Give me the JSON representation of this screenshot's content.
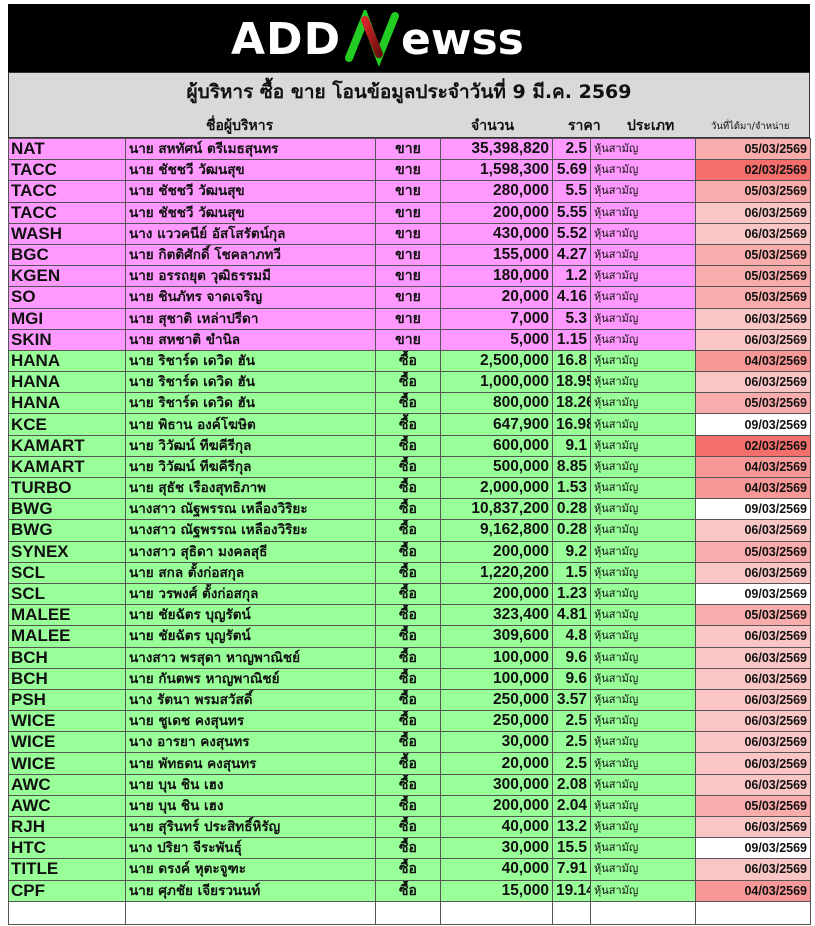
{
  "logo": {
    "text": "ADDNewss",
    "colors": {
      "white": "#ffffff",
      "green": "#22cc22",
      "red": "#cc2222"
    }
  },
  "title": "ผู้บริหาร ซื้อ ขาย โอนข้อมูลประจำวันที่ 9 มี.ค. 2569",
  "headers": {
    "name": "ชื่อผู้บริหาร",
    "volume": "จำนวน",
    "price": "ราคา",
    "type": "ประเภท",
    "date": "วันที่ได้มา/จำหน่าย"
  },
  "colors": {
    "sell_row": "#ff99ff",
    "buy_row": "#99ff99",
    "header": "#d9d9d9",
    "date_scale": {
      "02/03/2569": "#f46e6b",
      "04/03/2569": "#f79896",
      "05/03/2569": "#f8acab",
      "06/03/2569": "#f9c5c5",
      "09/03/2569": "#ffffff"
    }
  },
  "rows": [
    {
      "symbol": "NAT",
      "name": "นาย สหทัศน์ ตรีเมธสุนทร",
      "action": "ขาย",
      "volume": "35,398,820",
      "price": "2.5",
      "type": "หุ้นสามัญ",
      "date": "05/03/2569"
    },
    {
      "symbol": "TACC",
      "name": "นาย ชัชชวี วัฒนสุข",
      "action": "ขาย",
      "volume": "1,598,300",
      "price": "5.69",
      "type": "หุ้นสามัญ",
      "date": "02/03/2569"
    },
    {
      "symbol": "TACC",
      "name": "นาย ชัชชวี วัฒนสุข",
      "action": "ขาย",
      "volume": "280,000",
      "price": "5.5",
      "type": "หุ้นสามัญ",
      "date": "05/03/2569"
    },
    {
      "symbol": "TACC",
      "name": "นาย ชัชชวี วัฒนสุข",
      "action": "ขาย",
      "volume": "200,000",
      "price": "5.55",
      "type": "หุ้นสามัญ",
      "date": "06/03/2569"
    },
    {
      "symbol": "WASH",
      "name": "นาง แววคนีย์ อัสโสรัตน์กุล",
      "action": "ขาย",
      "volume": "430,000",
      "price": "5.52",
      "type": "หุ้นสามัญ",
      "date": "06/03/2569"
    },
    {
      "symbol": "BGC",
      "name": "นาย กิตติศักดิ์ โชคลาภทวี",
      "action": "ขาย",
      "volume": "155,000",
      "price": "4.27",
      "type": "หุ้นสามัญ",
      "date": "05/03/2569"
    },
    {
      "symbol": "KGEN",
      "name": "นาย อรรถยุต วุฒิธรรมมี",
      "action": "ขาย",
      "volume": "180,000",
      "price": "1.2",
      "type": "หุ้นสามัญ",
      "date": "05/03/2569"
    },
    {
      "symbol": "SO",
      "name": "นาย ชินภัทร จาดเจริญ",
      "action": "ขาย",
      "volume": "20,000",
      "price": "4.16",
      "type": "หุ้นสามัญ",
      "date": "05/03/2569"
    },
    {
      "symbol": "MGI",
      "name": "นาย สุชาติ เหล่าปรีดา",
      "action": "ขาย",
      "volume": "7,000",
      "price": "5.3",
      "type": "หุ้นสามัญ",
      "date": "06/03/2569"
    },
    {
      "symbol": "SKIN",
      "name": "นาย สหชาติ ขำนิล",
      "action": "ขาย",
      "volume": "5,000",
      "price": "1.15",
      "type": "หุ้นสามัญ",
      "date": "06/03/2569"
    },
    {
      "symbol": "HANA",
      "name": "นาย ริชาร์ด เดวิด ฮัน",
      "action": "ซื้อ",
      "volume": "2,500,000",
      "price": "16.8",
      "type": "หุ้นสามัญ",
      "date": "04/03/2569"
    },
    {
      "symbol": "HANA",
      "name": "นาย ริชาร์ด เดวิด ฮัน",
      "action": "ซื้อ",
      "volume": "1,000,000",
      "price": "18.95",
      "type": "หุ้นสามัญ",
      "date": "06/03/2569"
    },
    {
      "symbol": "HANA",
      "name": "นาย ริชาร์ด เดวิด ฮัน",
      "action": "ซื้อ",
      "volume": "800,000",
      "price": "18.26",
      "type": "หุ้นสามัญ",
      "date": "05/03/2569"
    },
    {
      "symbol": "KCE",
      "name": "นาย พิธาน องค์โฆษิต",
      "action": "ซื้อ",
      "volume": "647,900",
      "price": "16.98",
      "type": "หุ้นสามัญ",
      "date": "09/03/2569"
    },
    {
      "symbol": "KAMART",
      "name": "นาย วิวัฒน์ ทีฆคีรีกุล",
      "action": "ซื้อ",
      "volume": "600,000",
      "price": "9.1",
      "type": "หุ้นสามัญ",
      "date": "02/03/2569"
    },
    {
      "symbol": "KAMART",
      "name": "นาย วิวัฒน์ ทีฆคีรีกุล",
      "action": "ซื้อ",
      "volume": "500,000",
      "price": "8.85",
      "type": "หุ้นสามัญ",
      "date": "04/03/2569"
    },
    {
      "symbol": "TURBO",
      "name": "นาย สุธัช เรืองสุทธิภาพ",
      "action": "ซื้อ",
      "volume": "2,000,000",
      "price": "1.53",
      "type": "หุ้นสามัญ",
      "date": "04/03/2569"
    },
    {
      "symbol": "BWG",
      "name": "นางสาว ณัฐพรรณ เหลืองวิริยะ",
      "action": "ซื้อ",
      "volume": "10,837,200",
      "price": "0.28",
      "type": "หุ้นสามัญ",
      "date": "09/03/2569"
    },
    {
      "symbol": "BWG",
      "name": "นางสาว ณัฐพรรณ เหลืองวิริยะ",
      "action": "ซื้อ",
      "volume": "9,162,800",
      "price": "0.28",
      "type": "หุ้นสามัญ",
      "date": "06/03/2569"
    },
    {
      "symbol": "SYNEX",
      "name": "นางสาว สุธิดา มงคลสุธี",
      "action": "ซื้อ",
      "volume": "200,000",
      "price": "9.2",
      "type": "หุ้นสามัญ",
      "date": "05/03/2569"
    },
    {
      "symbol": "SCL",
      "name": "นาย สกล ตั้งก่อสกุล",
      "action": "ซื้อ",
      "volume": "1,220,200",
      "price": "1.5",
      "type": "หุ้นสามัญ",
      "date": "06/03/2569"
    },
    {
      "symbol": "SCL",
      "name": "นาย วรพงศ์ ตั้งก่อสกุล",
      "action": "ซื้อ",
      "volume": "200,000",
      "price": "1.23",
      "type": "หุ้นสามัญ",
      "date": "09/03/2569"
    },
    {
      "symbol": "MALEE",
      "name": "นาย ชัยฉัตร บุญรัตน์",
      "action": "ซื้อ",
      "volume": "323,400",
      "price": "4.81",
      "type": "หุ้นสามัญ",
      "date": "05/03/2569"
    },
    {
      "symbol": "MALEE",
      "name": "นาย ชัยฉัตร บุญรัตน์",
      "action": "ซื้อ",
      "volume": "309,600",
      "price": "4.8",
      "type": "หุ้นสามัญ",
      "date": "06/03/2569"
    },
    {
      "symbol": "BCH",
      "name": "นางสาว พรสุดา หาญพาณิชย์",
      "action": "ซื้อ",
      "volume": "100,000",
      "price": "9.6",
      "type": "หุ้นสามัญ",
      "date": "06/03/2569"
    },
    {
      "symbol": "BCH",
      "name": "นาย กันตพร หาญพาณิชย์",
      "action": "ซื้อ",
      "volume": "100,000",
      "price": "9.6",
      "type": "หุ้นสามัญ",
      "date": "06/03/2569"
    },
    {
      "symbol": "PSH",
      "name": "นาง รัตนา พรมสวัสดิ์",
      "action": "ซื้อ",
      "volume": "250,000",
      "price": "3.57",
      "type": "หุ้นสามัญ",
      "date": "06/03/2569"
    },
    {
      "symbol": "WICE",
      "name": "นาย ชูเดช คงสุนทร",
      "action": "ซื้อ",
      "volume": "250,000",
      "price": "2.5",
      "type": "หุ้นสามัญ",
      "date": "06/03/2569"
    },
    {
      "symbol": "WICE",
      "name": "นาง อารยา คงสุนทร",
      "action": "ซื้อ",
      "volume": "30,000",
      "price": "2.5",
      "type": "หุ้นสามัญ",
      "date": "06/03/2569"
    },
    {
      "symbol": "WICE",
      "name": "นาย พัทธดน คงสุนทร",
      "action": "ซื้อ",
      "volume": "20,000",
      "price": "2.5",
      "type": "หุ้นสามัญ",
      "date": "06/03/2569"
    },
    {
      "symbol": "AWC",
      "name": "นาย บุน ชิน เฮง",
      "action": "ซื้อ",
      "volume": "300,000",
      "price": "2.08",
      "type": "หุ้นสามัญ",
      "date": "06/03/2569"
    },
    {
      "symbol": "AWC",
      "name": "นาย บุน ชิน เฮง",
      "action": "ซื้อ",
      "volume": "200,000",
      "price": "2.04",
      "type": "หุ้นสามัญ",
      "date": "05/03/2569"
    },
    {
      "symbol": "RJH",
      "name": "นาย สุรินทร์ ประสิทธิ์หิรัญ",
      "action": "ซื้อ",
      "volume": "40,000",
      "price": "13.2",
      "type": "หุ้นสามัญ",
      "date": "06/03/2569"
    },
    {
      "symbol": "HTC",
      "name": "นาง ปริยา จีระพันธุ์",
      "action": "ซื้อ",
      "volume": "30,000",
      "price": "15.5",
      "type": "หุ้นสามัญ",
      "date": "09/03/2569"
    },
    {
      "symbol": "TITLE",
      "name": "นาย ดรงค์ หุตะจูฑะ",
      "action": "ซื้อ",
      "volume": "40,000",
      "price": "7.91",
      "type": "หุ้นสามัญ",
      "date": "06/03/2569"
    },
    {
      "symbol": "CPF",
      "name": "นาย ศุภชัย เจียรวนนท์",
      "action": "ซื้อ",
      "volume": "15,000",
      "price": "19.14",
      "type": "หุ้นสามัญ",
      "date": "04/03/2569"
    }
  ]
}
